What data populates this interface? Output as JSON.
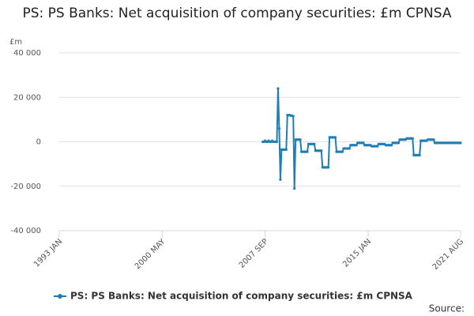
{
  "chart_data": {
    "type": "line",
    "title": "PS: PS Banks: Net acquisition of company securities: £m CPNSA",
    "y_label": "£m",
    "source": "Source:",
    "x": [
      "2007 JUL",
      "2007 AUG",
      "2007 SEP",
      "2007 OCT",
      "2007 NOV",
      "2007 DEC",
      "2008 JAN",
      "2008 FEB",
      "2008 MAR",
      "2008 APR",
      "2008 MAY",
      "2008 JUN",
      "2008 JUL",
      "2008 AUG",
      "2008 SEP",
      "2008 OCT",
      "2008 NOV",
      "2008 DEC",
      "2009 JAN",
      "2009 FEB",
      "2009 MAR",
      "2009 APR",
      "2009 MAY",
      "2009 JUN",
      "2009 JUL",
      "2009 AUG",
      "2009 SEP",
      "2009 OCT",
      "2009 NOV",
      "2009 DEC",
      "2010 JAN",
      "2010 FEB",
      "2010 MAR",
      "2010 APR",
      "2010 MAY",
      "2010 JUN",
      "2010 JUL",
      "2010 AUG",
      "2010 SEP",
      "2010 OCT",
      "2010 NOV",
      "2010 DEC",
      "2011 JAN",
      "2011 FEB",
      "2011 MAR",
      "2011 APR",
      "2011 MAY",
      "2011 JUN",
      "2011 JUL",
      "2011 AUG",
      "2011 SEP",
      "2011 OCT",
      "2011 NOV",
      "2011 DEC",
      "2012 JAN",
      "2012 FEB",
      "2012 MAR",
      "2012 APR",
      "2012 MAY",
      "2012 JUN",
      "2012 JUL",
      "2012 AUG",
      "2012 SEP",
      "2012 OCT",
      "2012 NOV",
      "2012 DEC",
      "2013 JAN",
      "2013 FEB",
      "2013 MAR",
      "2013 APR",
      "2013 MAY",
      "2013 JUN",
      "2013 JUL",
      "2013 AUG",
      "2013 SEP",
      "2013 OCT",
      "2013 NOV",
      "2013 DEC",
      "2014 JAN",
      "2014 FEB",
      "2014 MAR",
      "2014 APR",
      "2014 MAY",
      "2014 JUN",
      "2014 JUL",
      "2014 AUG",
      "2014 SEP",
      "2014 OCT",
      "2014 NOV",
      "2014 DEC",
      "2015 JAN",
      "2015 FEB",
      "2015 MAR",
      "2015 APR",
      "2015 MAY",
      "2015 JUN",
      "2015 JUL",
      "2015 AUG",
      "2015 SEP",
      "2015 OCT",
      "2015 NOV",
      "2015 DEC",
      "2016 JAN",
      "2016 FEB",
      "2016 MAR",
      "2016 APR",
      "2016 MAY",
      "2016 JUN",
      "2016 JUL",
      "2016 AUG",
      "2016 SEP",
      "2016 OCT",
      "2016 NOV",
      "2016 DEC",
      "2017 JAN",
      "2017 FEB",
      "2017 MAR",
      "2017 APR",
      "2017 MAY",
      "2017 JUN",
      "2017 JUL",
      "2017 AUG",
      "2017 SEP",
      "2017 OCT",
      "2017 NOV",
      "2017 DEC",
      "2018 JAN",
      "2018 FEB",
      "2018 MAR",
      "2018 APR",
      "2018 MAY",
      "2018 JUN",
      "2018 JUL",
      "2018 AUG",
      "2018 SEP",
      "2018 OCT",
      "2018 NOV",
      "2018 DEC",
      "2019 JAN",
      "2019 FEB",
      "2019 MAR",
      "2019 APR",
      "2019 MAY",
      "2019 JUN",
      "2019 JUL",
      "2019 AUG",
      "2019 SEP",
      "2019 OCT",
      "2019 NOV",
      "2019 DEC",
      "2020 JAN",
      "2020 FEB",
      "2020 MAR",
      "2020 APR",
      "2020 MAY",
      "2020 JUN",
      "2020 JUL",
      "2020 AUG",
      "2020 SEP",
      "2020 OCT",
      "2020 NOV",
      "2020 DEC",
      "2021 JAN",
      "2021 FEB",
      "2021 MAR",
      "2021 APR",
      "2021 MAY",
      "2021 JUN",
      "2021 JUL",
      "2021 AUG"
    ],
    "series": [
      {
        "name": "PS: PS Banks: Net acquisition of company securities: £m CPNSA",
        "color": "#1f7fb5",
        "values": [
          0,
          0,
          500,
          0,
          0,
          500,
          0,
          0,
          500,
          0,
          0,
          0,
          0,
          24000,
          6000,
          -17000,
          -3500,
          -3500,
          -3500,
          -3500,
          -3500,
          12000,
          12000,
          12000,
          11800,
          11800,
          11500,
          -21000,
          1000,
          1000,
          1000,
          1000,
          1000,
          -4500,
          -4500,
          -4500,
          -4500,
          -4500,
          -4500,
          -1000,
          -1000,
          -1000,
          -1000,
          -1000,
          -1000,
          -4000,
          -4000,
          -4000,
          -4000,
          -4000,
          -4000,
          -11500,
          -11500,
          -11500,
          -11500,
          -11500,
          -11500,
          2000,
          2000,
          2000,
          2000,
          2000,
          2000,
          -4500,
          -4500,
          -4500,
          -4500,
          -4500,
          -4500,
          -3000,
          -3000,
          -3000,
          -3000,
          -3000,
          -3000,
          -1500,
          -1500,
          -1500,
          -1500,
          -1500,
          -1500,
          -500,
          -500,
          -500,
          -500,
          -500,
          -500,
          -1500,
          -1500,
          -1500,
          -1500,
          -1500,
          -1500,
          -2000,
          -2000,
          -2000,
          -2000,
          -2000,
          -2000,
          -1000,
          -1000,
          -1000,
          -1000,
          -1000,
          -1000,
          -1500,
          -1500,
          -1500,
          -1500,
          -1500,
          -1500,
          -500,
          -500,
          -500,
          -500,
          -500,
          -500,
          1000,
          1000,
          1000,
          1000,
          1000,
          1000,
          1500,
          1500,
          1500,
          1500,
          1500,
          1500,
          -6000,
          -6000,
          -6000,
          -6000,
          -6000,
          -6000,
          500,
          500,
          500,
          500,
          500,
          500,
          1000,
          1000,
          1000,
          1000,
          1000,
          1000,
          -500,
          -500,
          -500,
          -500,
          -500,
          -500,
          -500,
          -500,
          -500,
          -500,
          -500,
          -500,
          -500,
          -500,
          -500,
          -500,
          -500,
          -500,
          -500,
          -500,
          -500,
          -500,
          -500
        ]
      }
    ],
    "xticks": [
      "1993 JAN",
      "2000 MAY",
      "2007 SEP",
      "2015 JAN",
      "2021 AUG"
    ],
    "ylim": [
      -40000,
      40000
    ],
    "yticks": [
      {
        "value": -40000,
        "label": "-40 000"
      },
      {
        "value": -20000,
        "label": "-20 000"
      },
      0,
      {
        "value": 20000,
        "label": "20 000"
      },
      {
        "value": 40000,
        "label": "40 000"
      }
    ],
    "grid": true
  }
}
